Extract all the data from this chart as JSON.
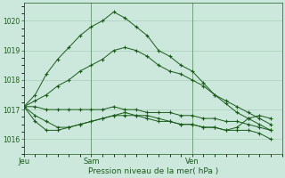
{
  "background_color": "#cce8dc",
  "grid_color": "#aaccba",
  "line_color": "#1a5c1a",
  "marker": "+",
  "xlabel": "Pression niveau de la mer( hPa )",
  "ylim": [
    1015.5,
    1020.6
  ],
  "yticks": [
    1016,
    1017,
    1018,
    1019,
    1020
  ],
  "xlim": [
    0,
    46
  ],
  "series": [
    {
      "x": [
        0,
        2,
        4,
        6,
        8,
        10,
        12,
        14,
        16,
        18,
        20,
        22,
        24,
        26,
        28,
        30,
        32,
        34,
        36,
        38,
        40,
        42,
        44
      ],
      "y": [
        1017.1,
        1017.5,
        1018.2,
        1018.7,
        1019.1,
        1019.5,
        1019.8,
        1020.0,
        1020.3,
        1020.1,
        1019.8,
        1019.5,
        1019.0,
        1018.8,
        1018.5,
        1018.3,
        1017.9,
        1017.5,
        1017.2,
        1016.9,
        1016.7,
        1016.5,
        1016.3
      ]
    },
    {
      "x": [
        0,
        2,
        4,
        6,
        8,
        10,
        12,
        14,
        16,
        18,
        20,
        22,
        24,
        26,
        28,
        30,
        32,
        34,
        36,
        38,
        40,
        42,
        44
      ],
      "y": [
        1017.1,
        1017.3,
        1017.5,
        1017.8,
        1018.0,
        1018.3,
        1018.5,
        1018.7,
        1019.0,
        1019.1,
        1019.0,
        1018.8,
        1018.5,
        1018.3,
        1018.2,
        1018.0,
        1017.8,
        1017.5,
        1017.3,
        1017.1,
        1016.9,
        1016.7,
        1016.5
      ]
    },
    {
      "x": [
        0,
        2,
        4,
        6,
        8,
        10,
        12,
        14,
        16,
        18,
        20,
        22,
        24,
        26,
        28,
        30,
        32,
        34,
        36,
        38,
        40,
        42,
        44
      ],
      "y": [
        1017.1,
        1017.1,
        1017.0,
        1017.0,
        1017.0,
        1017.0,
        1017.0,
        1017.0,
        1017.1,
        1017.0,
        1017.0,
        1016.9,
        1016.9,
        1016.9,
        1016.8,
        1016.8,
        1016.7,
        1016.7,
        1016.6,
        1016.6,
        1016.5,
        1016.4,
        1016.3
      ]
    },
    {
      "x": [
        0,
        2,
        4,
        6,
        8,
        10,
        12,
        14,
        16,
        18,
        20,
        22,
        24,
        26,
        28,
        30,
        32,
        34,
        36,
        38,
        40,
        42,
        44
      ],
      "y": [
        1017.1,
        1016.8,
        1016.6,
        1016.4,
        1016.4,
        1016.5,
        1016.6,
        1016.7,
        1016.8,
        1016.8,
        1016.8,
        1016.7,
        1016.6,
        1016.6,
        1016.5,
        1016.5,
        1016.4,
        1016.4,
        1016.3,
        1016.3,
        1016.3,
        1016.2,
        1016.0
      ]
    },
    {
      "x": [
        0,
        2,
        4,
        6,
        8,
        10,
        12,
        14,
        16,
        18,
        20,
        22,
        24,
        26,
        28,
        30,
        32,
        34,
        36,
        38,
        40,
        42,
        44
      ],
      "y": [
        1017.1,
        1016.6,
        1016.3,
        1016.3,
        1016.4,
        1016.5,
        1016.6,
        1016.7,
        1016.8,
        1016.9,
        1016.8,
        1016.8,
        1016.7,
        1016.6,
        1016.5,
        1016.5,
        1016.4,
        1016.4,
        1016.3,
        1016.4,
        1016.7,
        1016.8,
        1016.7
      ]
    }
  ],
  "day_lines": [
    0,
    12,
    30
  ],
  "xtick_named": [
    [
      0,
      "Jeu"
    ],
    [
      12,
      "Sam"
    ],
    [
      30,
      "Ven"
    ]
  ]
}
